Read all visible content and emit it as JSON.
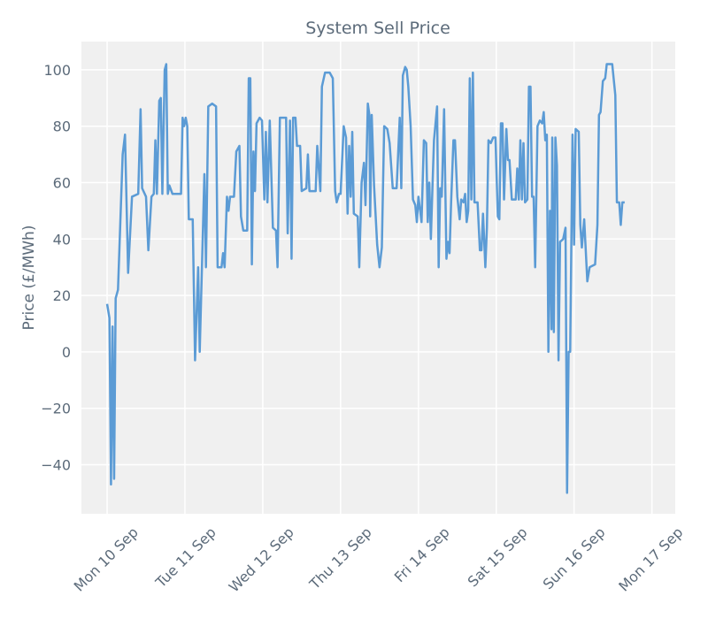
{
  "chart_data": {
    "type": "line",
    "title": "System Sell Price",
    "ylabel": "Price (£/MWh)",
    "color": "#5b9bd5",
    "grid": true,
    "xlim": [
      -0.33,
      7.3
    ],
    "ylim": [
      -57.4,
      110
    ],
    "xticks": [
      {
        "value": 0,
        "label": "Mon 10 Sep"
      },
      {
        "value": 1,
        "label": "Tue 11 Sep"
      },
      {
        "value": 2,
        "label": "Wed 12 Sep"
      },
      {
        "value": 3,
        "label": "Thu 13 Sep"
      },
      {
        "value": 4,
        "label": "Fri 14 Sep"
      },
      {
        "value": 5,
        "label": "Sat 15 Sep"
      },
      {
        "value": 6,
        "label": "Sun 16 Sep"
      },
      {
        "value": 7,
        "label": "Mon 17 Sep"
      }
    ],
    "yticks": [
      {
        "value": -40,
        "label": "−40"
      },
      {
        "value": -20,
        "label": "−20"
      },
      0,
      20,
      40,
      60,
      80,
      100
    ],
    "x": [
      0,
      0.03,
      0.05,
      0.07,
      0.09,
      0.11,
      0.14,
      0.2,
      0.23,
      0.27,
      0.32,
      0.4,
      0.43,
      0.45,
      0.5,
      0.53,
      0.57,
      0.6,
      0.62,
      0.64,
      0.67,
      0.69,
      0.71,
      0.74,
      0.76,
      0.78,
      0.8,
      0.84,
      0.95,
      0.97,
      0.99,
      1.01,
      1.03,
      1.05,
      1.1,
      1.13,
      1.17,
      1.19,
      1.25,
      1.27,
      1.3,
      1.35,
      1.4,
      1.42,
      1.47,
      1.49,
      1.51,
      1.54,
      1.56,
      1.58,
      1.63,
      1.66,
      1.7,
      1.72,
      1.75,
      1.8,
      1.82,
      1.84,
      1.86,
      1.88,
      1.9,
      1.92,
      1.96,
      1.99,
      2.02,
      2.04,
      2.06,
      2.09,
      2.13,
      2.17,
      2.19,
      2.22,
      2.3,
      2.32,
      2.35,
      2.37,
      2.39,
      2.42,
      2.44,
      2.48,
      2.5,
      2.56,
      2.58,
      2.6,
      2.68,
      2.7,
      2.74,
      2.76,
      2.8,
      2.86,
      2.9,
      2.93,
      2.95,
      2.98,
      3.0,
      3.04,
      3.07,
      3.09,
      3.11,
      3.13,
      3.15,
      3.17,
      3.22,
      3.24,
      3.27,
      3.3,
      3.32,
      3.35,
      3.37,
      3.38,
      3.4,
      3.43,
      3.47,
      3.5,
      3.53,
      3.56,
      3.6,
      3.63,
      3.67,
      3.72,
      3.76,
      3.78,
      3.8,
      3.83,
      3.85,
      3.87,
      3.9,
      3.93,
      3.96,
      3.98,
      4.0,
      4.04,
      4.07,
      4.1,
      4.12,
      4.14,
      4.16,
      4.18,
      4.2,
      4.24,
      4.26,
      4.28,
      4.3,
      4.33,
      4.36,
      4.38,
      4.4,
      4.42,
      4.45,
      4.47,
      4.5,
      4.53,
      4.55,
      4.58,
      4.6,
      4.62,
      4.64,
      4.66,
      4.68,
      4.7,
      4.72,
      4.76,
      4.79,
      4.81,
      4.83,
      4.86,
      4.88,
      4.9,
      4.93,
      4.96,
      4.99,
      5.02,
      5.04,
      5.06,
      5.08,
      5.1,
      5.13,
      5.15,
      5.17,
      5.2,
      5.25,
      5.27,
      5.29,
      5.31,
      5.33,
      5.35,
      5.37,
      5.4,
      5.42,
      5.44,
      5.46,
      5.48,
      5.5,
      5.53,
      5.56,
      5.59,
      5.61,
      5.63,
      5.65,
      5.67,
      5.69,
      5.71,
      5.72,
      5.74,
      5.76,
      5.78,
      5.8,
      5.82,
      5.86,
      5.89,
      5.91,
      5.93,
      5.95,
      5.98,
      6.0,
      6.02,
      6.06,
      6.08,
      6.1,
      6.13,
      6.17,
      6.2,
      6.27,
      6.3,
      6.32,
      6.34,
      6.37,
      6.4,
      6.42,
      6.49,
      6.53,
      6.55,
      6.58,
      6.6,
      6.62,
      6.65
    ],
    "values": [
      17,
      12,
      -47,
      9,
      -45,
      19,
      22,
      70,
      77,
      28,
      55,
      56,
      86,
      58,
      55,
      36,
      55,
      56,
      75,
      56,
      89,
      90,
      56,
      100,
      102,
      56,
      59,
      56,
      56,
      83,
      80,
      83,
      80,
      47,
      47,
      -3,
      30,
      0,
      63,
      30,
      87,
      88,
      87,
      30,
      30,
      35,
      30,
      55,
      50,
      55,
      55,
      71,
      73,
      48,
      43,
      43,
      97,
      97,
      31,
      71,
      57,
      81,
      83,
      82,
      54,
      78,
      53,
      82,
      44,
      43,
      30,
      83,
      83,
      42,
      82,
      33,
      83,
      83,
      73,
      73,
      57,
      58,
      70,
      57,
      57,
      73,
      57,
      94,
      99,
      99,
      97,
      57,
      53,
      56,
      56,
      80,
      76,
      49,
      73,
      55,
      78,
      49,
      48,
      30,
      60,
      67,
      52,
      88,
      84,
      48,
      84,
      59,
      38,
      30,
      37,
      80,
      79,
      74,
      58,
      58,
      83,
      58,
      98,
      101,
      100,
      94,
      80,
      54,
      52,
      46,
      55,
      46,
      75,
      74,
      46,
      60,
      40,
      58,
      75,
      87,
      30,
      58,
      55,
      86,
      33,
      39,
      35,
      53,
      75,
      75,
      55,
      47,
      54,
      53,
      56,
      46,
      50,
      97,
      54,
      99,
      53,
      53,
      36,
      36,
      49,
      30,
      44,
      75,
      74,
      76,
      76,
      48,
      47,
      81,
      81,
      54,
      79,
      68,
      68,
      54,
      54,
      65,
      54,
      75,
      54,
      74,
      53,
      54,
      94,
      94,
      55,
      55,
      30,
      80,
      82,
      81,
      85,
      75,
      77,
      0,
      50,
      8,
      76,
      7,
      76,
      66,
      -3,
      39,
      40,
      44,
      -50,
      0,
      0,
      77,
      38,
      79,
      78,
      45,
      37,
      47,
      25,
      30,
      31,
      45,
      84,
      85,
      96,
      97,
      102,
      102,
      91,
      53,
      53,
      45,
      53,
      53
    ]
  }
}
